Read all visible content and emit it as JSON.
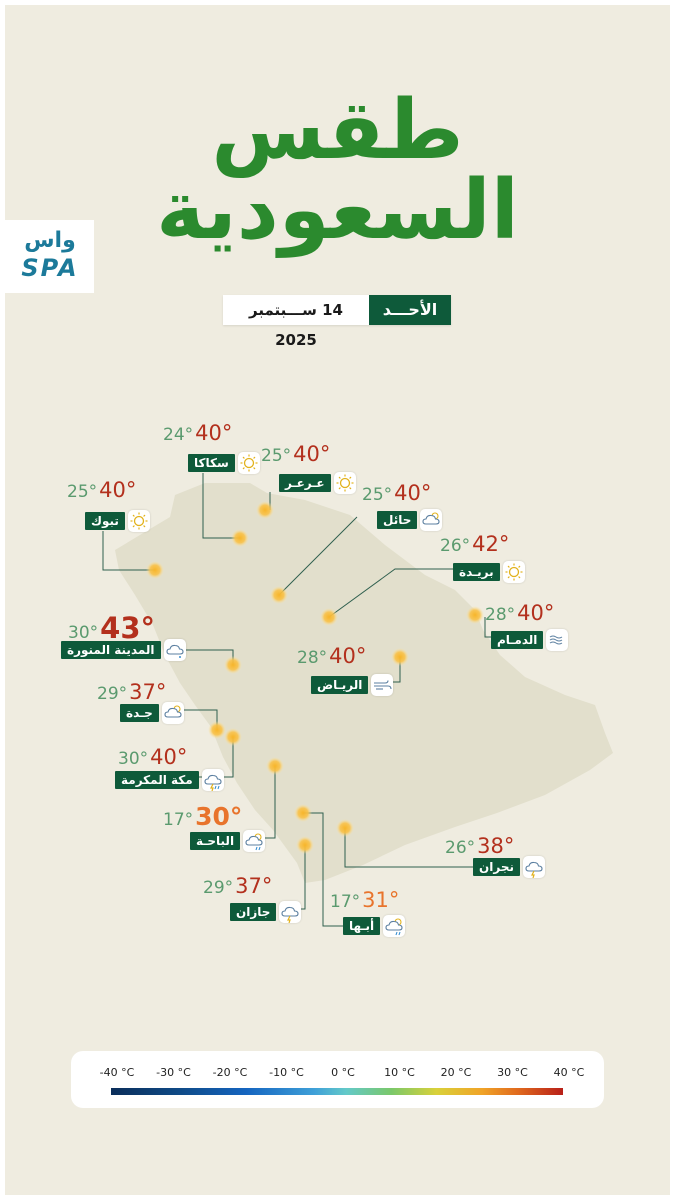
{
  "title_line1": "طقس",
  "title_line2": "السعودية",
  "logo": {
    "arabic": "واس",
    "latin": "SPA"
  },
  "date": {
    "day": "الأحـــد",
    "text": "14 ســـبتمبر 2025"
  },
  "colors": {
    "background": "#efece0",
    "title_green": "#2b8a2e",
    "label_green": "#0e5a3a",
    "min_temp": "#5a9a6e",
    "hot_red": "#b3301d",
    "warm_orange": "#e8742c",
    "map_land": "#e2dfcc",
    "sun_dot": "#f7b52a"
  },
  "cities": [
    {
      "id": "sakaka",
      "name": "سكاكا",
      "min": "24°",
      "max": "40°",
      "icon": "sun-icon"
    },
    {
      "id": "arar",
      "name": "عـرعـر",
      "min": "25°",
      "max": "40°",
      "icon": "sun-icon"
    },
    {
      "id": "tabuk",
      "name": "تبوك",
      "min": "25°",
      "max": "40°",
      "icon": "sun-icon"
    },
    {
      "id": "hail",
      "name": "حائل",
      "min": "25°",
      "max": "40°",
      "icon": "partly-cloudy-icon"
    },
    {
      "id": "buraydah",
      "name": "بريـدة",
      "min": "26°",
      "max": "42°",
      "icon": "sun-icon"
    },
    {
      "id": "dammam",
      "name": "الدمـام",
      "min": "28°",
      "max": "40°",
      "icon": "haze-icon"
    },
    {
      "id": "madinah",
      "name": "المدينة المنورة",
      "min": "30°",
      "max": "43°",
      "icon": "dust-cloud-icon"
    },
    {
      "id": "riyadh",
      "name": "الريـاض",
      "min": "28°",
      "max": "40°",
      "icon": "wind-icon"
    },
    {
      "id": "jeddah",
      "name": "جـدة",
      "min": "29°",
      "max": "37°",
      "icon": "partly-cloudy-icon"
    },
    {
      "id": "makkah",
      "name": "مكة المكرمة",
      "min": "30°",
      "max": "40°",
      "icon": "thunder-rain-icon"
    },
    {
      "id": "albaha",
      "name": "الباحـة",
      "min": "17°",
      "max": "30°",
      "icon": "partly-cloudy-rain-icon"
    },
    {
      "id": "najran",
      "name": "نجران",
      "min": "26°",
      "max": "38°",
      "icon": "thunder-icon"
    },
    {
      "id": "jazan",
      "name": "جازان",
      "min": "29°",
      "max": "37°",
      "icon": "thunder-icon"
    },
    {
      "id": "abha",
      "name": "أبـها",
      "min": "17°",
      "max": "31°",
      "icon": "partly-cloudy-rain-icon"
    }
  ],
  "legend": {
    "ticks": [
      "-40 °C",
      "-30 °C",
      "-20 °C",
      "-10 °C",
      "0 °C",
      "10 °C",
      "20 °C",
      "30 °C",
      "40 °C"
    ]
  }
}
